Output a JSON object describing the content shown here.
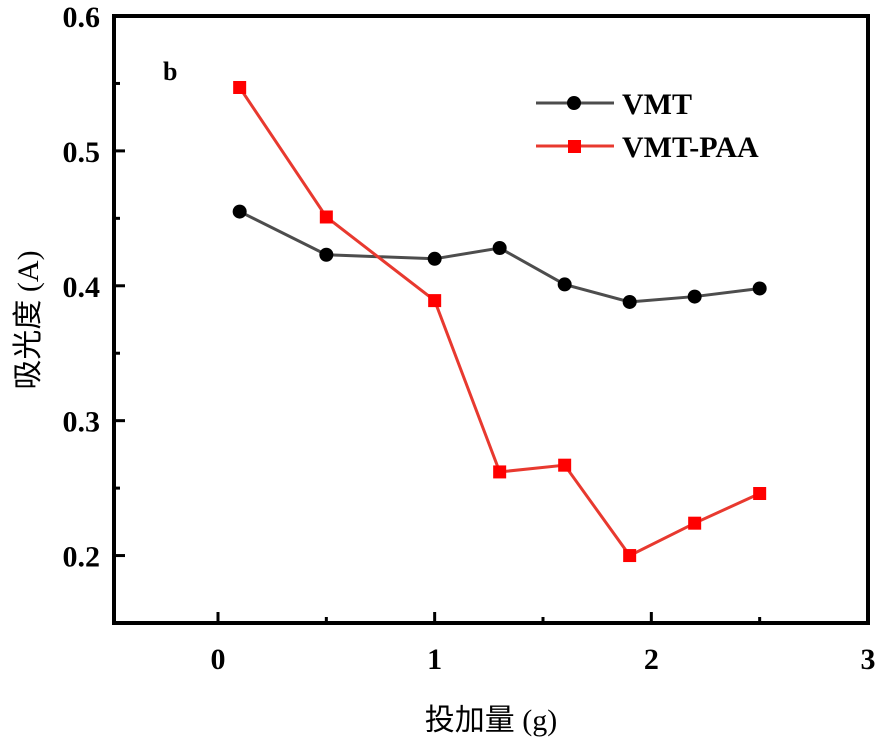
{
  "chart_data": {
    "type": "line",
    "title": "",
    "panel_label": "b",
    "xlabel": "投加量 (g)",
    "ylabel": "吸光度 (A)",
    "xlim": [
      -0.48,
      3
    ],
    "ylim": [
      0.15,
      0.6
    ],
    "xticks": [
      0,
      1,
      2,
      3
    ],
    "xtick_labels": [
      "0",
      "1",
      "2",
      "3"
    ],
    "x_minor_ticks": [
      0.5,
      1.5,
      2.5
    ],
    "yticks": [
      0.2,
      0.3,
      0.4,
      0.5,
      0.6
    ],
    "ytick_labels": [
      "0.2",
      "0.3",
      "0.4",
      "0.5",
      "0.6"
    ],
    "y_minor_ticks": [
      0.25,
      0.35,
      0.45,
      0.55
    ],
    "grid": false,
    "legend_position": "top-right",
    "x": [
      0.1,
      0.5,
      1.0,
      1.3,
      1.6,
      1.9,
      2.2,
      2.5
    ],
    "series": [
      {
        "name": "VMT",
        "color": "#4d4d4d",
        "marker_color": "#000000",
        "marker": "circle",
        "values": [
          0.455,
          0.423,
          0.42,
          0.428,
          0.401,
          0.388,
          0.392,
          0.398
        ]
      },
      {
        "name": "VMT-PAA",
        "color": "#e8392f",
        "marker_color": "#ff0000",
        "marker": "square",
        "values": [
          0.547,
          0.451,
          0.389,
          0.262,
          0.267,
          0.2,
          0.224,
          0.246
        ]
      }
    ]
  }
}
